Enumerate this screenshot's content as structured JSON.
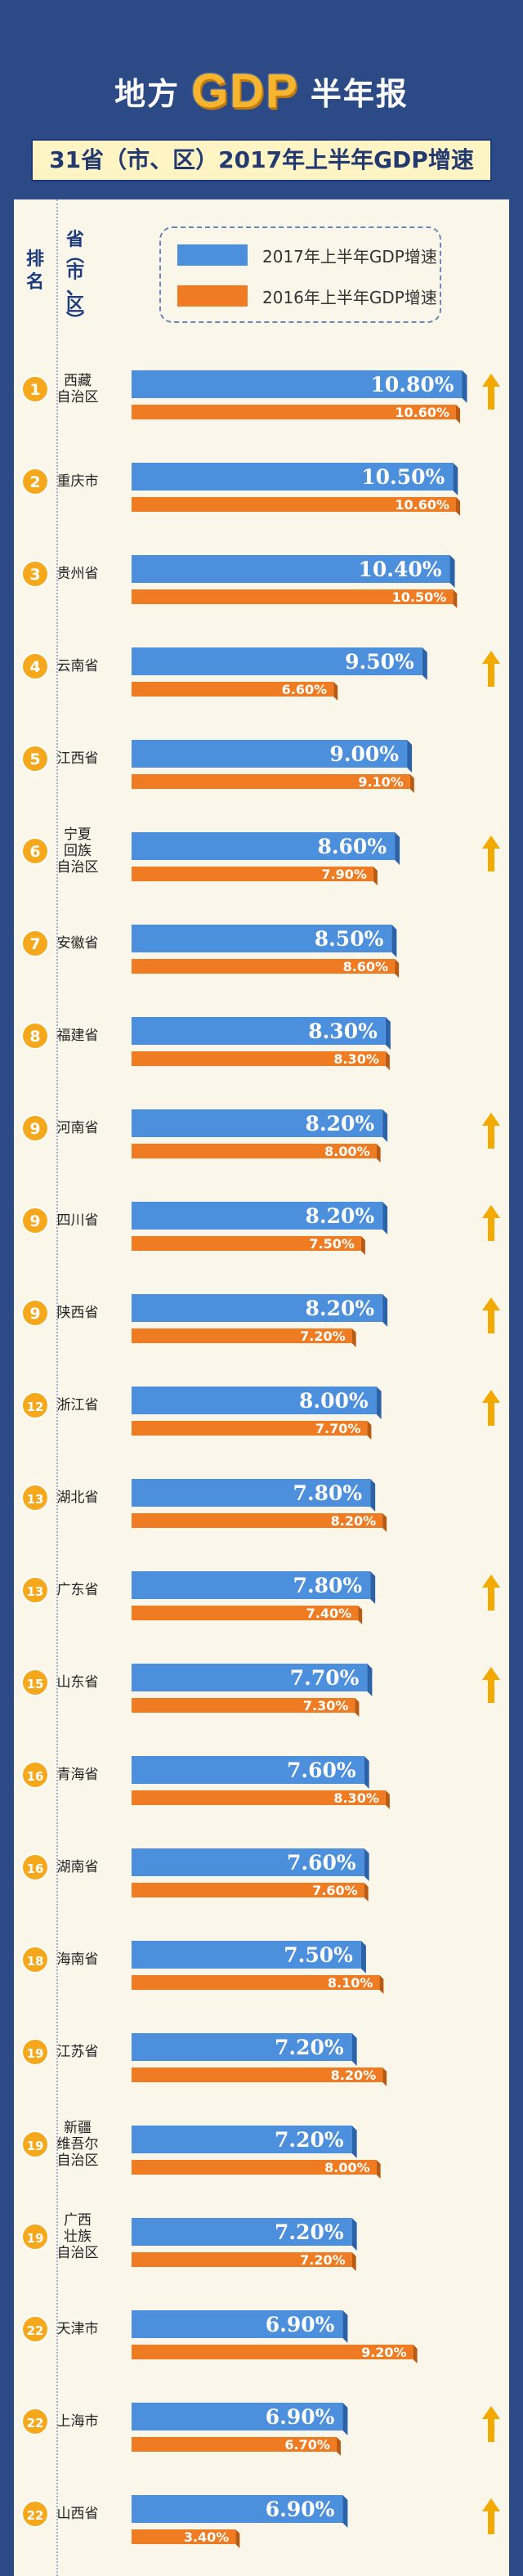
{
  "header": {
    "title_left": "地方",
    "title_mid": "GDP",
    "title_right": "半年报",
    "subtitle": "31省（市、区）2017年上半年GDP增速"
  },
  "table": {
    "rank_header": "排名",
    "province_header": "省（市、区）"
  },
  "colors": {
    "bar_2017": "#4c8fdd",
    "bar_2016": "#ef7c22",
    "up_arrow": "#f2a900",
    "badge": "#f6a81c",
    "background": "#2c4a86",
    "panel": "#fbf6ea"
  },
  "chart_data": {
    "type": "bar",
    "orientation": "horizontal",
    "series": [
      {
        "name": "2017年上半年GDP增速",
        "values": [
          10.8,
          10.5,
          10.4,
          9.5,
          9.0,
          8.6,
          8.5,
          8.3,
          8.2,
          8.2,
          8.2,
          8.0,
          7.8,
          7.8,
          7.7,
          7.6,
          7.6,
          7.5,
          7.2,
          7.2,
          7.2,
          6.9,
          6.9,
          6.9
        ]
      },
      {
        "name": "2016年上半年GDP增速",
        "values": [
          10.6,
          10.6,
          10.5,
          6.6,
          9.1,
          7.9,
          8.6,
          8.3,
          8.0,
          7.5,
          7.2,
          7.7,
          8.2,
          7.4,
          7.3,
          8.3,
          7.6,
          8.1,
          8.2,
          8.0,
          7.2,
          9.2,
          6.7,
          3.4
        ]
      }
    ],
    "categories": [
      "西藏自治区",
      "重庆市",
      "贵州省",
      "云南省",
      "江西省",
      "宁夏回族自治区",
      "安徽省",
      "福建省",
      "河南省",
      "四川省",
      "陕西省",
      "浙江省",
      "湖北省",
      "广东省",
      "山东省",
      "青海省",
      "湖南省",
      "海南省",
      "江苏省",
      "新疆维吾尔自治区",
      "广西壮族自治区",
      "天津市",
      "上海市",
      "山西省"
    ],
    "category_lines": [
      [
        "西藏",
        "自治区"
      ],
      [
        "重庆市"
      ],
      [
        "贵州省"
      ],
      [
        "云南省"
      ],
      [
        "江西省"
      ],
      [
        "宁夏",
        "回族",
        "自治区"
      ],
      [
        "安徽省"
      ],
      [
        "福建省"
      ],
      [
        "河南省"
      ],
      [
        "四川省"
      ],
      [
        "陕西省"
      ],
      [
        "浙江省"
      ],
      [
        "湖北省"
      ],
      [
        "广东省"
      ],
      [
        "山东省"
      ],
      [
        "青海省"
      ],
      [
        "湖南省"
      ],
      [
        "海南省"
      ],
      [
        "江苏省"
      ],
      [
        "新疆",
        "维吾尔",
        "自治区"
      ],
      [
        "广西",
        "壮族",
        "自治区"
      ],
      [
        "天津市"
      ],
      [
        "上海市"
      ],
      [
        "山西省"
      ]
    ],
    "ranks": [
      "1",
      "2",
      "3",
      "4",
      "5",
      "6",
      "7",
      "8",
      "9",
      "9",
      "9",
      "12",
      "13",
      "13",
      "15",
      "16",
      "16",
      "18",
      "19",
      "19",
      "19",
      "22",
      "22",
      "22"
    ],
    "up_arrow": [
      true,
      false,
      false,
      true,
      false,
      true,
      false,
      false,
      true,
      true,
      true,
      true,
      false,
      true,
      true,
      false,
      false,
      false,
      false,
      false,
      false,
      false,
      true,
      true
    ],
    "value_labels_2017": [
      "10.80%",
      "10.50%",
      "10.40%",
      "9.50%",
      "9.00%",
      "8.60%",
      "8.50%",
      "8.30%",
      "8.20%",
      "8.20%",
      "8.20%",
      "8.00%",
      "7.80%",
      "7.80%",
      "7.70%",
      "7.60%",
      "7.60%",
      "7.50%",
      "7.20%",
      "7.20%",
      "7.20%",
      "6.90%",
      "6.90%",
      "6.90%"
    ],
    "value_labels_2016": [
      "10.60%",
      "10.60%",
      "10.50%",
      "6.60%",
      "9.10%",
      "7.90%",
      "8.60%",
      "8.30%",
      "8.00%",
      "7.50%",
      "7.20%",
      "7.70%",
      "8.20%",
      "7.40%",
      "7.30%",
      "8.30%",
      "7.60%",
      "8.10%",
      "8.20%",
      "8.00%",
      "7.20%",
      "9.20%",
      "6.70%",
      "3.40%"
    ],
    "xlim": [
      0,
      11
    ]
  }
}
